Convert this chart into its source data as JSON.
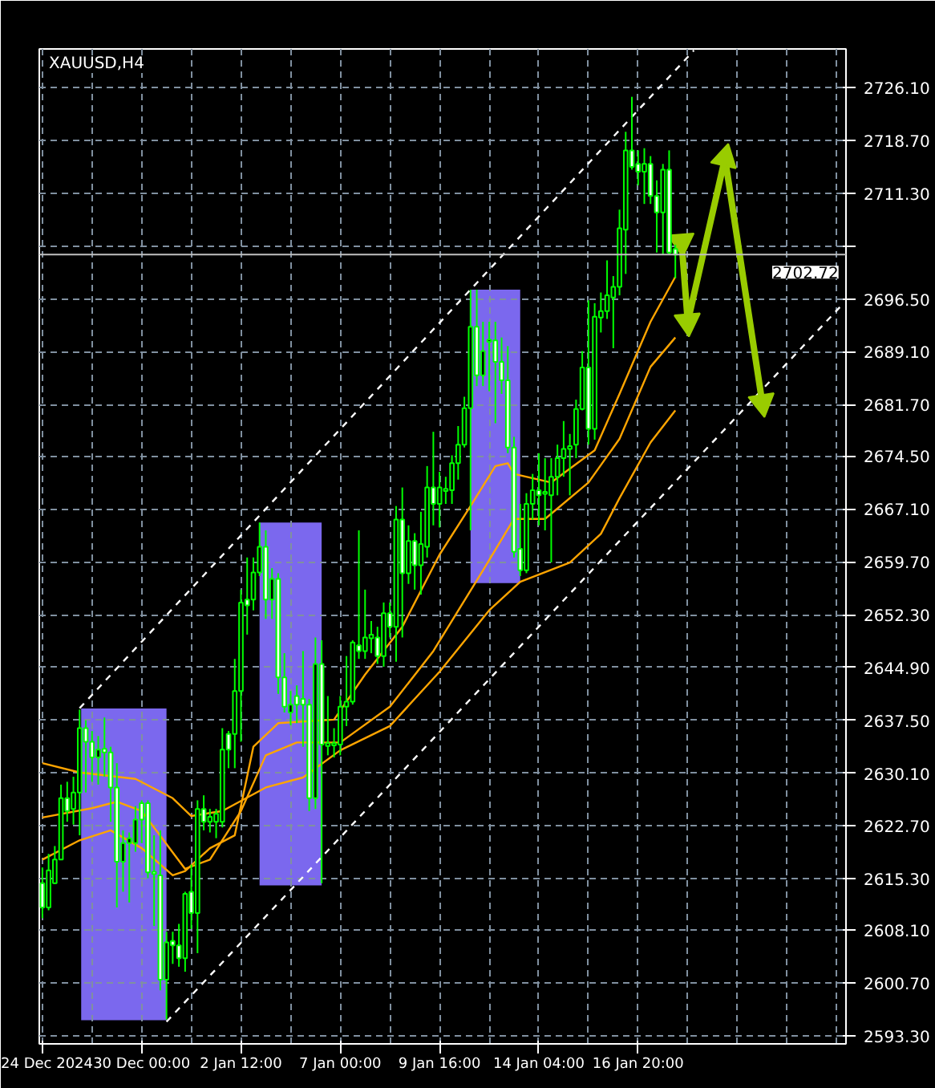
{
  "chart_data": {
    "type": "candlestick",
    "title": "XAUUSD,H4",
    "categories": [
      "24 Dec 2024",
      null,
      null,
      null,
      null,
      null,
      null,
      null,
      null,
      null,
      null,
      null,
      null,
      null,
      null,
      null,
      "30 Dec 00:00",
      null,
      null,
      null,
      null,
      null,
      null,
      null,
      null,
      null,
      null,
      null,
      null,
      null,
      null,
      null,
      "2 Jan 12:00",
      null,
      null,
      null,
      null,
      null,
      null,
      null,
      null,
      null,
      null,
      null,
      null,
      null,
      null,
      null,
      "7 Jan 00:00",
      null,
      null,
      null,
      null,
      null,
      null,
      null,
      null,
      null,
      null,
      null,
      null,
      null,
      null,
      null,
      "9 Jan 16:00",
      null,
      null,
      null,
      null,
      null,
      null,
      null,
      null,
      null,
      null,
      null,
      null,
      null,
      null,
      null,
      "14 Jan 04:00",
      null,
      null,
      null,
      null,
      null,
      null,
      null,
      null,
      null,
      null,
      null,
      null,
      null,
      null,
      null,
      "16 Jan 20:00",
      null,
      null,
      null,
      null,
      null,
      null,
      null,
      null,
      null,
      null,
      null,
      null,
      null,
      null,
      null,
      null,
      null,
      null,
      null,
      null,
      null,
      null,
      null,
      null,
      null,
      null,
      null,
      null,
      null,
      null,
      null,
      null,
      null
    ],
    "ylim": [
      2592.2,
      2731.5
    ],
    "yticks": [
      {
        "value": 2593.3,
        "label": "2593.30"
      },
      {
        "value": 2600.7,
        "label": "2600.70"
      },
      {
        "value": 2608.1,
        "label": "2608.10"
      },
      {
        "value": 2615.3,
        "label": "2615.30"
      },
      {
        "value": 2622.7,
        "label": "2622.70"
      },
      {
        "value": 2630.1,
        "label": "2630.10"
      },
      {
        "value": 2637.5,
        "label": "2637.50"
      },
      {
        "value": 2644.9,
        "label": "2644.90"
      },
      {
        "value": 2652.3,
        "label": "2652.30"
      },
      {
        "value": 2659.7,
        "label": "2659.70"
      },
      {
        "value": 2667.1,
        "label": "2667.10"
      },
      {
        "value": 2674.5,
        "label": "2674.50"
      },
      {
        "value": 2681.7,
        "label": "2681.70"
      },
      {
        "value": 2689.1,
        "label": "2689.10"
      },
      {
        "value": 2696.5,
        "label": "2696.50"
      },
      {
        "value": 2703.9,
        "label": null
      },
      {
        "value": 2711.3,
        "label": "2711.30"
      },
      {
        "value": 2718.7,
        "label": "2718.70"
      },
      {
        "value": 2726.1,
        "label": "2726.10"
      }
    ],
    "grid": true,
    "ref_lines": [
      {
        "axis": "y",
        "value": 2702.72,
        "label": "2702.72",
        "color": "#c0c0c0"
      }
    ],
    "series": [
      {
        "color": "#00ff00",
        "ohlc": [
          [
            2614.7,
            2616.9,
            2609.8,
            2611.3
          ],
          [
            2611.3,
            2618.8,
            2610.9,
            2616.5
          ],
          [
            2614.7,
            2619.9,
            2614.6,
            2618.0
          ],
          [
            2618.0,
            2628.5,
            2618.0,
            2626.6
          ],
          [
            2626.6,
            2628.9,
            2623.3,
            2624.8
          ],
          [
            2625.1,
            2629.6,
            2622.9,
            2627.4
          ],
          [
            2627.4,
            2639.0,
            2621.4,
            2636.4
          ],
          [
            2636.4,
            2637.5,
            2627.4,
            2634.5
          ],
          [
            2634.5,
            2636.0,
            2628.9,
            2632.3
          ],
          [
            2632.3,
            2635.3,
            2628.5,
            2633.4
          ],
          [
            2633.5,
            2637.9,
            2629.6,
            2633.0
          ],
          [
            2633.0,
            2633.8,
            2623.3,
            2628.1
          ],
          [
            2628.1,
            2631.5,
            2611.3,
            2617.7
          ],
          [
            2617.7,
            2622.1,
            2613.5,
            2620.3
          ],
          [
            2620.3,
            2621.8,
            2612.0,
            2621.0
          ],
          [
            2620.3,
            2625.5,
            2619.1,
            2623.6
          ],
          [
            2625.9,
            2626.3,
            2620.3,
            2623.6
          ],
          [
            2625.9,
            2626.3,
            2615.4,
            2616.2
          ],
          [
            2616.3,
            2621.4,
            2608.7,
            2616.0
          ],
          [
            2615.8,
            2622.1,
            2599.7,
            2601.2
          ],
          [
            2601.2,
            2607.9,
            2595.6,
            2606.4
          ],
          [
            2606.6,
            2607.9,
            2603.4,
            2606.0
          ],
          [
            2606.0,
            2609.0,
            2603.0,
            2604.2
          ],
          [
            2604.2,
            2613.5,
            2602.3,
            2613.2
          ],
          [
            2613.5,
            2617.3,
            2608.3,
            2610.5
          ],
          [
            2610.5,
            2626.3,
            2604.9,
            2625.1
          ],
          [
            2625.1,
            2627.0,
            2622.1,
            2623.3
          ],
          [
            2623.3,
            2625.1,
            2621.8,
            2624.0
          ],
          [
            2623.3,
            2625.1,
            2621.0,
            2624.4
          ],
          [
            2623.3,
            2636.4,
            2622.5,
            2633.4
          ],
          [
            2635.6,
            2636.0,
            2630.8,
            2633.4
          ],
          [
            2635.6,
            2646.1,
            2630.8,
            2641.6
          ],
          [
            2641.6,
            2655.8,
            2634.5,
            2654.0
          ],
          [
            2654.4,
            2660.3,
            2649.5,
            2653.6
          ],
          [
            2654.4,
            2660.3,
            2652.9,
            2658.2
          ],
          [
            2658.2,
            2665.2,
            2657.7,
            2661.8
          ],
          [
            2661.8,
            2664.1,
            2651.7,
            2654.4
          ],
          [
            2654.4,
            2658.8,
            2651.7,
            2657.3
          ],
          [
            2657.3,
            2658.1,
            2641.2,
            2643.5
          ],
          [
            2643.5,
            2646.9,
            2638.6,
            2639.4
          ],
          [
            2638.6,
            2641.6,
            2636.8,
            2639.7
          ],
          [
            2640.9,
            2642.4,
            2637.1,
            2639.7
          ],
          [
            2640.5,
            2647.2,
            2633.8,
            2639.7
          ],
          [
            2639.7,
            2640.5,
            2624.8,
            2626.6
          ],
          [
            2626.6,
            2649.1,
            2625.1,
            2645.4
          ],
          [
            2645.4,
            2648.7,
            2614.7,
            2634.1
          ],
          [
            2633.9,
            2640.9,
            2632.6,
            2634.3
          ],
          [
            2634.0,
            2636.4,
            2632.3,
            2634.3
          ],
          [
            2634.1,
            2640.9,
            2632.6,
            2639.4
          ],
          [
            2639.4,
            2646.5,
            2636.7,
            2640.1
          ],
          [
            2640.1,
            2648.7,
            2639.7,
            2648.4
          ],
          [
            2648.0,
            2664.1,
            2646.1,
            2647.2
          ],
          [
            2647.2,
            2655.8,
            2646.1,
            2649.1
          ],
          [
            2649.0,
            2651.4,
            2646.9,
            2649.5
          ],
          [
            2649.1,
            2650.6,
            2645.4,
            2646.5
          ],
          [
            2646.5,
            2654.0,
            2645.0,
            2652.5
          ],
          [
            2652.5,
            2654.0,
            2649.1,
            2650.6
          ],
          [
            2650.6,
            2667.5,
            2645.7,
            2665.6
          ],
          [
            2665.6,
            2670.1,
            2649.1,
            2658.1
          ],
          [
            2658.1,
            2664.8,
            2656.6,
            2662.6
          ],
          [
            2662.6,
            2663.7,
            2655.8,
            2659.2
          ],
          [
            2659.2,
            2666.7,
            2655.1,
            2662.2
          ],
          [
            2661.8,
            2673.1,
            2660.3,
            2670.1
          ],
          [
            2670.1,
            2677.9,
            2664.8,
            2667.8
          ],
          [
            2667.8,
            2672.3,
            2664.5,
            2670.1
          ],
          [
            2669.6,
            2671.6,
            2667.8,
            2669.9
          ],
          [
            2669.7,
            2674.6,
            2667.8,
            2673.5
          ],
          [
            2673.5,
            2678.7,
            2671.2,
            2676.1
          ],
          [
            2676.1,
            2682.8,
            2675.7,
            2681.2
          ],
          [
            2681.2,
            2697.8,
            2664.1,
            2692.6
          ],
          [
            2692.6,
            2697.8,
            2684.3,
            2685.8
          ],
          [
            2685.8,
            2693.3,
            2684.3,
            2689.2
          ],
          [
            2690.5,
            2693.3,
            2683.6,
            2690.8
          ],
          [
            2690.7,
            2693.3,
            2679.1,
            2687.7
          ],
          [
            2687.7,
            2691.1,
            2683.2,
            2685.1
          ],
          [
            2685.1,
            2689.9,
            2674.9,
            2675.7
          ],
          [
            2675.7,
            2677.2,
            2660.3,
            2661.1
          ],
          [
            2661.5,
            2667.8,
            2657.7,
            2658.5
          ],
          [
            2658.5,
            2669.3,
            2658.1,
            2667.8
          ],
          [
            2667.8,
            2672.0,
            2665.6,
            2669.7
          ],
          [
            2669.7,
            2674.9,
            2664.8,
            2669.0
          ],
          [
            2669.2,
            2674.2,
            2664.1,
            2669.5
          ],
          [
            2669.0,
            2674.2,
            2659.6,
            2671.6
          ],
          [
            2671.6,
            2676.1,
            2669.0,
            2674.2
          ],
          [
            2674.2,
            2679.4,
            2671.6,
            2675.5
          ],
          [
            2675.5,
            2677.6,
            2669.0,
            2675.9
          ],
          [
            2676.1,
            2682.4,
            2674.2,
            2681.1
          ],
          [
            2681.1,
            2689.2,
            2680.9,
            2686.9
          ],
          [
            2686.9,
            2696.3,
            2676.1,
            2678.3
          ],
          [
            2678.3,
            2695.9,
            2676.8,
            2694.0
          ],
          [
            2693.9,
            2697.4,
            2691.8,
            2694.8
          ],
          [
            2694.8,
            2701.9,
            2693.7,
            2697.0
          ],
          [
            2696.7,
            2699.7,
            2689.6,
            2698.2
          ],
          [
            2698.2,
            2709.0,
            2697.0,
            2706.4
          ],
          [
            2706.2,
            2719.9,
            2700.0,
            2717.3
          ],
          [
            2717.3,
            2724.8,
            2714.6,
            2715.0
          ],
          [
            2715.4,
            2717.3,
            2712.4,
            2714.3
          ],
          [
            2714.3,
            2717.6,
            2709.8,
            2715.4
          ],
          [
            2715.4,
            2716.5,
            2709.8,
            2710.9
          ],
          [
            2710.9,
            2713.1,
            2703.0,
            2708.6
          ],
          [
            2708.6,
            2715.4,
            2702.7,
            2714.6
          ],
          [
            2714.6,
            2717.3,
            2702.7,
            2703.0
          ],
          [
            2703.5,
            2704.1,
            2699.4,
            2702.7
          ],
          null,
          null,
          null,
          null,
          null,
          null,
          null,
          null,
          null,
          null,
          null,
          null,
          null,
          null,
          null,
          null,
          null,
          null,
          null,
          null,
          null,
          null,
          null,
          null,
          null,
          null,
          null
        ]
      },
      {
        "type": "line",
        "color": "#ffa500",
        "values": [
          2631.5,
          null,
          null,
          null,
          null,
          null,
          2630.2,
          null,
          null,
          null,
          null,
          null,
          null,
          null,
          null,
          2629.3,
          null,
          null,
          null,
          null,
          null,
          2626.6,
          null,
          null,
          2624.1,
          null,
          null,
          null,
          null,
          2624.8,
          null,
          null,
          null,
          null,
          null,
          null,
          2628.1,
          null,
          null,
          null,
          null,
          null,
          2629.5,
          null,
          null,
          null,
          null,
          null,
          2633.3,
          null,
          null,
          null,
          null,
          null,
          null,
          null,
          2636.7,
          null,
          null,
          null,
          null,
          null,
          null,
          null,
          2644.3,
          null,
          null,
          null,
          null,
          null,
          null,
          null,
          2652.9,
          null,
          null,
          null,
          null,
          2656.9,
          null,
          null,
          null,
          null,
          null,
          null,
          null,
          2659.6,
          null,
          null,
          null,
          null,
          2663.6,
          null,
          null,
          2668.6,
          null,
          null,
          null,
          null,
          2676.4,
          null,
          null,
          null,
          2680.9,
          null,
          null,
          null,
          null,
          null,
          null,
          null,
          null,
          null,
          null,
          null,
          null,
          null,
          null,
          null,
          null,
          null,
          null,
          null,
          null,
          null,
          null,
          null,
          null,
          null,
          null,
          null
        ]
      },
      {
        "type": "line",
        "color": "#ffa500",
        "values": [
          2623.9,
          null,
          null,
          null,
          null,
          null,
          null,
          null,
          2625.2,
          null,
          null,
          null,
          2626.1,
          null,
          null,
          null,
          2624.8,
          null,
          null,
          null,
          null,
          null,
          null,
          2616.7,
          null,
          null,
          null,
          2618.0,
          null,
          null,
          null,
          null,
          2624.8,
          null,
          null,
          null,
          2632.6,
          null,
          null,
          null,
          null,
          2634.4,
          null,
          null,
          null,
          null,
          null,
          null,
          2634.4,
          null,
          null,
          null,
          null,
          null,
          null,
          null,
          2639.4,
          null,
          null,
          null,
          null,
          null,
          null,
          2647.2,
          null,
          null,
          null,
          null,
          null,
          null,
          null,
          2658.5,
          null,
          null,
          null,
          null,
          2665.7,
          null,
          null,
          null,
          null,
          2665.7,
          null,
          null,
          null,
          null,
          null,
          null,
          2670.8,
          null,
          null,
          null,
          null,
          2676.9,
          null,
          null,
          null,
          null,
          2687.0,
          null,
          null,
          null,
          2691.1,
          null,
          null,
          null,
          null,
          null,
          null,
          null,
          null,
          null,
          null,
          null,
          null,
          null,
          null,
          null,
          null,
          null,
          null,
          null,
          null,
          null,
          null,
          null,
          null,
          null,
          null,
          null
        ]
      },
      {
        "type": "line",
        "color": "#ffa500",
        "values": [
          2618.0,
          null,
          null,
          null,
          null,
          null,
          2620.7,
          null,
          null,
          null,
          null,
          2622.1,
          null,
          null,
          null,
          null,
          2619.6,
          null,
          null,
          null,
          null,
          2615.8,
          null,
          2616.4,
          null,
          null,
          null,
          2619.6,
          null,
          null,
          null,
          2621.4,
          null,
          null,
          2633.8,
          null,
          null,
          null,
          2637.1,
          null,
          null,
          null,
          null,
          null,
          null,
          null,
          null,
          2637.6,
          null,
          null,
          null,
          null,
          2643.9,
          null,
          null,
          null,
          null,
          null,
          2650.6,
          null,
          null,
          null,
          null,
          null,
          2660.7,
          null,
          null,
          null,
          null,
          2667.5,
          null,
          null,
          null,
          2673.1,
          null,
          2673.5,
          2672.0,
          null,
          null,
          null,
          null,
          null,
          2670.8,
          null,
          null,
          null,
          null,
          null,
          null,
          2675.3,
          null,
          null,
          null,
          2683.2,
          null,
          null,
          null,
          null,
          2693.3,
          null,
          null,
          null,
          2699.6,
          null,
          null,
          null,
          null,
          null,
          null,
          null,
          null,
          null,
          null,
          null,
          null,
          null,
          null,
          null,
          null,
          null,
          null,
          null,
          null,
          null,
          null,
          null,
          null,
          null,
          null,
          null
        ]
      },
      {
        "type": "line",
        "color": "#ffffff",
        "line_style": "dashed",
        "values": [
          null,
          null,
          null,
          null,
          null,
          null,
          2639.2,
          null,
          null,
          null,
          null,
          null,
          null,
          null,
          null,
          null,
          null,
          null,
          null,
          null,
          null,
          null,
          null,
          null,
          null,
          null,
          null,
          null,
          null,
          null,
          null,
          null,
          null,
          null,
          null,
          null,
          null,
          null,
          null,
          null,
          null,
          null,
          null,
          null,
          null,
          null,
          null,
          null,
          null,
          null,
          null,
          null,
          null,
          null,
          null,
          null,
          null,
          null,
          null,
          null,
          null,
          null,
          null,
          null,
          null,
          null,
          null,
          null,
          null,
          null,
          null,
          null,
          null,
          null,
          null,
          null,
          null,
          null,
          null,
          null,
          null,
          null,
          null,
          null,
          null,
          null,
          null,
          null,
          null,
          null,
          null,
          null,
          null,
          null,
          null,
          null,
          null,
          null,
          null,
          null,
          null,
          null,
          null,
          null,
          null,
          2731.3,
          null,
          null,
          null,
          null,
          null,
          null,
          null,
          null,
          null,
          null,
          null,
          null,
          null,
          null,
          null,
          null,
          null,
          null,
          null,
          null,
          null,
          null,
          null,
          null
        ]
      },
      {
        "type": "line",
        "color": "#ffffff",
        "line_style": "dashed",
        "values": [
          null,
          null,
          null,
          null,
          null,
          null,
          null,
          null,
          null,
          null,
          null,
          null,
          null,
          null,
          null,
          null,
          null,
          null,
          null,
          null,
          2595.3,
          null,
          null,
          null,
          null,
          null,
          null,
          null,
          null,
          null,
          null,
          null,
          null,
          null,
          null,
          null,
          null,
          null,
          null,
          null,
          null,
          null,
          null,
          null,
          null,
          null,
          null,
          null,
          null,
          null,
          null,
          null,
          null,
          null,
          null,
          null,
          null,
          null,
          null,
          null,
          null,
          null,
          null,
          null,
          null,
          null,
          null,
          null,
          null,
          null,
          null,
          null,
          null,
          null,
          null,
          null,
          null,
          null,
          null,
          null,
          null,
          null,
          null,
          null,
          null,
          null,
          null,
          null,
          null,
          null,
          null,
          null,
          null,
          null,
          null,
          null,
          null,
          null,
          null,
          null,
          null,
          null,
          null,
          null,
          null,
          null,
          null,
          null,
          null,
          null,
          null,
          null,
          null,
          null,
          null,
          null,
          null,
          null,
          null,
          null,
          null,
          null,
          null,
          null,
          null,
          null,
          null,
          null,
          null,
          2695.8
        ]
      },
      {
        "type": "line",
        "color": "#99cc00",
        "marker": "triangle",
        "values": [
          null,
          null,
          null,
          null,
          null,
          null,
          null,
          null,
          null,
          null,
          null,
          null,
          null,
          null,
          null,
          null,
          null,
          null,
          null,
          null,
          null,
          null,
          null,
          null,
          null,
          null,
          null,
          null,
          null,
          null,
          null,
          null,
          null,
          null,
          null,
          null,
          null,
          null,
          null,
          null,
          null,
          null,
          null,
          null,
          null,
          null,
          null,
          null,
          null,
          null,
          null,
          null,
          null,
          null,
          null,
          null,
          null,
          null,
          null,
          null,
          null,
          null,
          null,
          null,
          null,
          null,
          null,
          null,
          null,
          null,
          null,
          null,
          null,
          null,
          null,
          null,
          null,
          null,
          null,
          null,
          null,
          null,
          null,
          null,
          null,
          null,
          null,
          null,
          null,
          null,
          null,
          null,
          null,
          null,
          null,
          null,
          null,
          null,
          null,
          null,
          null,
          null,
          null,
          2704.5,
          2693.3,
          null,
          null,
          null,
          null,
          null,
          2716.2,
          null,
          null,
          null,
          null,
          null,
          2682.0,
          null,
          null,
          null,
          null,
          null,
          null,
          null,
          null,
          null,
          null,
          null,
          null,
          null
        ]
      }
    ]
  }
}
